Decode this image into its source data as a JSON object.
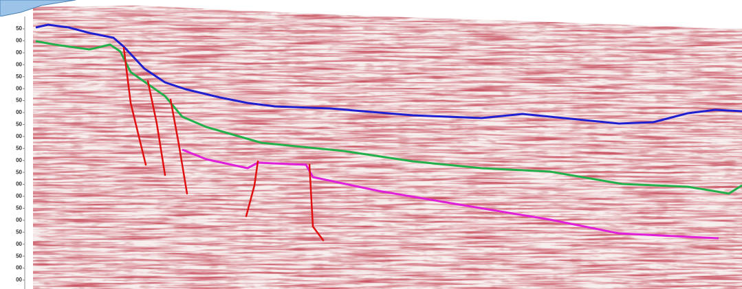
{
  "axis": {
    "labels": [
      "50",
      "00",
      "00",
      "00",
      "50",
      "00",
      "50",
      "00",
      "50",
      "00",
      "50",
      "00",
      "50",
      "00",
      "00",
      "50",
      "00",
      "50",
      "00",
      "50",
      "00",
      "00"
    ]
  }
}
